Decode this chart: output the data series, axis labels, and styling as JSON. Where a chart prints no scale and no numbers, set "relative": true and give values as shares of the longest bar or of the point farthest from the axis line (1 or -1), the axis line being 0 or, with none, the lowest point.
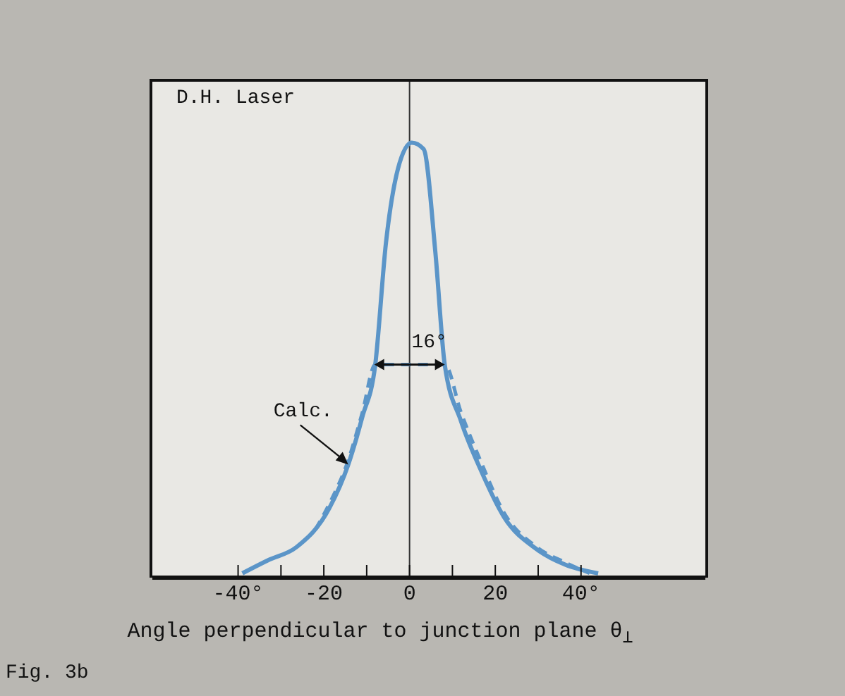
{
  "chart_data": {
    "type": "line",
    "relative": true,
    "xlabel": "Angle perpendicular to junction plane θ$_{⊥}$",
    "xlim": [
      -60,
      69
    ],
    "xticks": [
      {
        "value": -40,
        "label": "-40°"
      },
      {
        "value": -30,
        "label": null
      },
      {
        "value": -20,
        "label": "-20"
      },
      {
        "value": -10,
        "label": null
      },
      {
        "value": 0,
        "label": "0"
      },
      {
        "value": 10,
        "label": null
      },
      {
        "value": 20,
        "label": "20"
      },
      {
        "value": 30,
        "label": null
      },
      {
        "value": 40,
        "label": "40°"
      }
    ],
    "series": [
      {
        "color": "#5b95c8",
        "line_style": "solid",
        "x": [
          -39,
          -33,
          -26.4,
          -18.7,
          -14.3,
          -11,
          -8,
          -5.5,
          -2.7,
          0.5,
          3.3,
          6,
          8.2,
          12,
          16.5,
          22,
          29.7,
          36.3,
          44
        ],
        "values": [
          0.01,
          0.04,
          0.07,
          0.16,
          0.26,
          0.37,
          0.49,
          0.77,
          0.94,
          1,
          0.985,
          0.75,
          0.49,
          0.36,
          0.25,
          0.14,
          0.065,
          0.03,
          0.01
        ]
      },
      {
        "color": "#5b95c8",
        "line_style": "dashed",
        "x": [
          -22,
          -18.7,
          -14.3,
          -11,
          -8,
          8.2,
          12,
          16.5,
          22,
          29.7,
          36.3,
          42
        ],
        "values": [
          0.11,
          0.17,
          0.27,
          0.38,
          0.49,
          0.49,
          0.38,
          0.27,
          0.15,
          0.07,
          0.035,
          0.01
        ]
      }
    ],
    "ref_lines": [
      {
        "axis": "x",
        "value": 0,
        "color": "#333333"
      }
    ],
    "annotations": [
      "D.H. Laser",
      {
        "text": "16°",
        "x": 0,
        "y": 0.49
      },
      {
        "text": "Calc.",
        "x": -14.3,
        "y": 0.26
      },
      "Fig. 3b"
    ]
  }
}
